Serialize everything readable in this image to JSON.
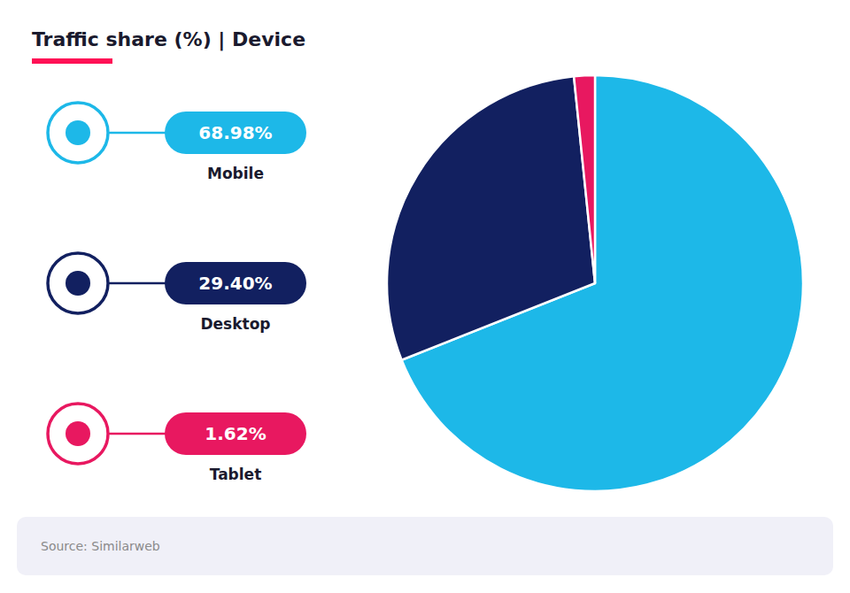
{
  "chart_data": {
    "type": "pie",
    "title": "Traffic share (%) | Device",
    "categories": [
      "Mobile",
      "Desktop",
      "Tablet"
    ],
    "values": [
      68.98,
      29.4,
      1.62
    ],
    "value_labels": [
      "68.98%",
      "29.40%",
      "1.62%"
    ],
    "colors": [
      "#1DB8E8",
      "#122060",
      "#E81860"
    ],
    "data_labels": true,
    "legend": "left",
    "annotations": [
      "Source: Similarweb"
    ]
  }
}
